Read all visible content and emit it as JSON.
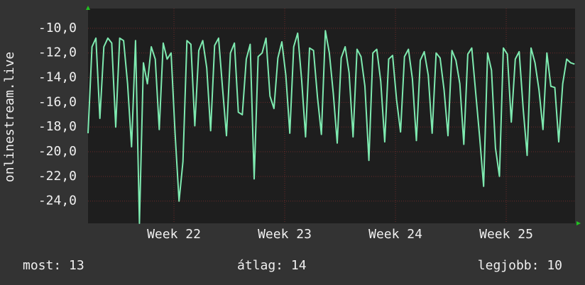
{
  "chart_data": {
    "type": "line",
    "y_label": "onlinestream.live",
    "x": [
      0,
      0.25,
      0.5,
      0.75,
      1,
      1.25,
      1.5,
      1.75,
      2,
      2.25,
      2.5,
      2.75,
      3,
      3.25,
      3.5,
      3.75,
      4,
      4.25,
      4.5,
      4.75,
      5,
      5.25,
      5.5,
      5.75,
      6,
      6.25,
      6.5,
      6.75,
      7,
      7.25,
      7.5,
      7.75,
      8,
      8.25,
      8.5,
      8.75,
      9,
      9.25,
      9.5,
      9.75,
      10,
      10.25,
      10.5,
      10.75,
      11,
      11.25,
      11.5,
      11.75,
      12,
      12.25,
      12.5,
      12.75,
      13,
      13.25,
      13.5,
      13.75,
      14,
      14.25,
      14.5,
      14.75,
      15,
      15.25,
      15.5,
      15.75,
      16,
      16.25,
      16.5,
      16.75,
      17,
      17.25,
      17.5,
      17.75,
      18,
      18.25,
      18.5,
      18.75,
      19,
      19.25,
      19.5,
      19.75,
      20,
      20.25,
      20.5,
      20.75,
      21,
      21.25,
      21.5,
      21.75,
      22,
      22.25,
      22.5,
      22.75,
      23,
      23.25,
      23.5,
      23.75,
      24,
      24.25,
      24.5,
      24.75,
      25,
      25.25,
      25.5,
      25.75,
      26,
      26.25,
      26.5,
      26.75,
      27,
      27.25,
      27.5,
      27.75,
      28,
      28.25,
      28.5,
      28.75,
      29,
      29.25,
      29.5,
      29.75,
      30,
      30.25,
      30.5,
      30.75
    ],
    "series": [
      {
        "name": "onlinestream.live",
        "color": "#7eeab0",
        "values": [
          -18.5,
          -11.5,
          -10.8,
          -17.3,
          -11.5,
          -10.8,
          -11.2,
          -18,
          -10.8,
          -11.0,
          -14.5,
          -19.6,
          -11.0,
          -25.8,
          -12.8,
          -14.5,
          -11.5,
          -12.5,
          -18.2,
          -11.2,
          -12.5,
          -12.0,
          -18.5,
          -24.0,
          -20.8,
          -11.0,
          -11.3,
          -17.9,
          -11.8,
          -11.0,
          -13.2,
          -18.3,
          -11.4,
          -10.8,
          -14.8,
          -18.7,
          -12.0,
          -11.2,
          -16.8,
          -17.0,
          -12.5,
          -11.3,
          -22.2,
          -12.3,
          -12.0,
          -10.8,
          -15.5,
          -16.5,
          -12.4,
          -11.1,
          -13.8,
          -18.5,
          -11.5,
          -10.4,
          -14.2,
          -18.8,
          -11.6,
          -11.8,
          -15.6,
          -18.6,
          -10.2,
          -12.0,
          -15.3,
          -19.3,
          -12.4,
          -11.5,
          -13.6,
          -18.8,
          -11.7,
          -12.3,
          -14.7,
          -20.7,
          -12.0,
          -11.7,
          -14.3,
          -19.2,
          -12.5,
          -12.2,
          -15.8,
          -18.4,
          -12.3,
          -11.7,
          -14.1,
          -19.1,
          -12.6,
          -11.9,
          -13.8,
          -18.5,
          -12.0,
          -12.4,
          -15.0,
          -18.7,
          -11.8,
          -12.6,
          -14.5,
          -19.4,
          -12.1,
          -11.6,
          -15.2,
          -18.8,
          -22.8,
          -12.0,
          -13.4,
          -19.7,
          -22.0,
          -11.6,
          -12.1,
          -17.6,
          -12.5,
          -11.9,
          -16.5,
          -20.3,
          -11.6,
          -12.8,
          -15.0,
          -18.2,
          -12.0,
          -14.7,
          -14.8,
          -19.2,
          -14.5,
          -12.5,
          -12.8,
          -12.9
        ]
      }
    ],
    "xlim": [
      0,
      30.78
    ],
    "xticks": [
      {
        "value": 5.43,
        "label": "Week 22"
      },
      {
        "value": 12.43,
        "label": "Week 23"
      },
      {
        "value": 19.43,
        "label": "Week 24"
      },
      {
        "value": 26.43,
        "label": "Week 25"
      }
    ],
    "ylim": [
      -25.8,
      -8.4
    ],
    "yticks": [
      {
        "value": -24,
        "label": "-24,0"
      },
      {
        "value": -22,
        "label": "-22,0"
      },
      {
        "value": -20,
        "label": "-20,0"
      },
      {
        "value": -18,
        "label": "-18,0"
      },
      {
        "value": -16,
        "label": "-16,0"
      },
      {
        "value": -14,
        "label": "-14,0"
      },
      {
        "value": -12,
        "label": "-12,0"
      },
      {
        "value": -10,
        "label": "-10,0"
      }
    ],
    "grid": true,
    "footer": {
      "current": "most: 13",
      "average": "átlag: 14",
      "best": "legjobb: 10"
    }
  }
}
